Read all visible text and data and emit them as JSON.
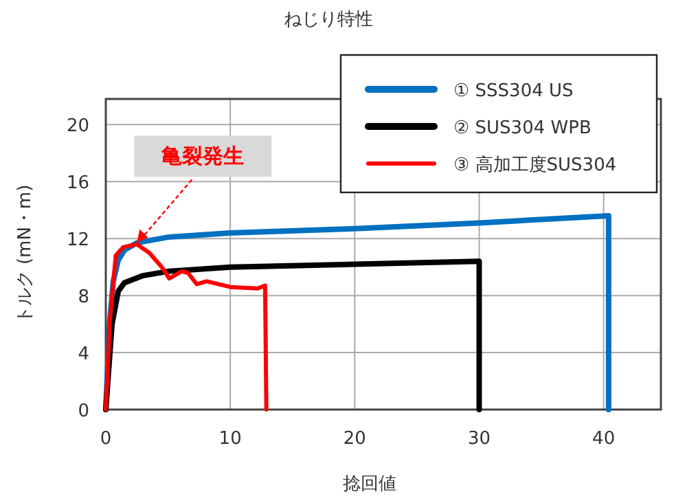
{
  "chart_data": {
    "type": "line",
    "title": "ねじり特性",
    "xlabel": "捻回値",
    "ylabel": "トルク (mN・m)",
    "xlim": [
      0,
      44.6
    ],
    "ylim": [
      0,
      21.8
    ],
    "xticks": [
      0,
      10,
      20,
      30,
      40
    ],
    "yticks": [
      0,
      4,
      8,
      12,
      16,
      20
    ],
    "grid": true,
    "legend": "top right",
    "marker": "none",
    "line_style": "solid",
    "annotations": [
      {
        "text": "亀裂発生",
        "x": 2.5,
        "y": 11.7
      }
    ],
    "series": [
      {
        "name": "① SSS304 US",
        "color": "#0070c0",
        "x": [
          0,
          0.3,
          0.6,
          1,
          1.5,
          2.5,
          5,
          10,
          20,
          30,
          40.4,
          40.4
        ],
        "values": [
          0,
          6,
          9,
          10.5,
          11.2,
          11.7,
          12.1,
          12.4,
          12.7,
          13.1,
          13.6,
          0
        ]
      },
      {
        "name": "② SUS304 WPB",
        "color": "#000000",
        "x": [
          0,
          0.5,
          1,
          1.5,
          3,
          5,
          10,
          20,
          30,
          30,
          30
        ],
        "values": [
          0,
          6,
          8.3,
          8.9,
          9.4,
          9.7,
          10,
          10.2,
          10.4,
          10.4,
          0
        ]
      },
      {
        "name": "③ 高加工度SUS304",
        "color": "#ff0000",
        "x": [
          0,
          0.3,
          0.8,
          1.4,
          2.5,
          3.5,
          4.5,
          5.1,
          6.1,
          6.6,
          7.3,
          8.1,
          10,
          12.2,
          12.8,
          12.9
        ],
        "values": [
          0,
          6,
          10.8,
          11.4,
          11.6,
          11,
          10,
          9.2,
          9.7,
          9.6,
          8.8,
          9,
          8.6,
          8.5,
          8.7,
          0
        ]
      }
    ]
  }
}
